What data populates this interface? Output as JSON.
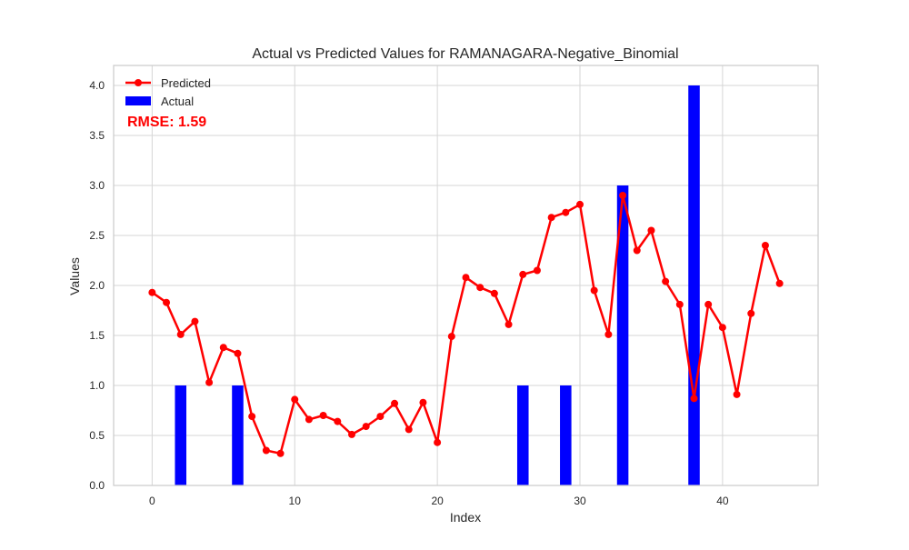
{
  "chart_data": {
    "type": "bar+line",
    "title": "Actual vs Predicted Values for RAMANAGARA-Negative_Binomial",
    "xlabel": "Index",
    "ylabel": "Values",
    "xlim": [
      -2.7,
      46.7
    ],
    "ylim": [
      0,
      4.2
    ],
    "xticks": [
      0,
      10,
      20,
      30,
      40
    ],
    "yticks": [
      0.0,
      0.5,
      1.0,
      1.5,
      2.0,
      2.5,
      3.0,
      3.5,
      4.0
    ],
    "ytick_labels": [
      "0.0",
      "0.5",
      "1.0",
      "1.5",
      "2.0",
      "2.5",
      "3.0",
      "3.5",
      "4.0"
    ],
    "grid": true,
    "legend_position": "top-left",
    "annotation": "RMSE: 1.59",
    "series": [
      {
        "name": "Predicted",
        "kind": "line",
        "marker": "circle",
        "color": "#ff0000",
        "x": [
          0,
          1,
          2,
          3,
          4,
          5,
          6,
          7,
          8,
          9,
          10,
          11,
          12,
          13,
          14,
          15,
          16,
          17,
          18,
          19,
          20,
          21,
          22,
          23,
          24,
          25,
          26,
          27,
          28,
          29,
          30,
          31,
          32,
          33,
          34,
          35,
          36,
          37,
          38,
          39,
          40,
          41,
          42,
          43,
          44
        ],
        "values": [
          1.93,
          1.83,
          1.51,
          1.64,
          1.03,
          1.38,
          1.32,
          0.69,
          0.35,
          0.32,
          0.86,
          0.66,
          0.7,
          0.64,
          0.51,
          0.59,
          0.69,
          0.82,
          0.56,
          0.83,
          0.43,
          1.49,
          2.08,
          1.98,
          1.92,
          1.61,
          2.11,
          2.15,
          2.68,
          2.73,
          2.81,
          1.95,
          1.51,
          2.9,
          2.35,
          2.55,
          2.04,
          1.81,
          0.87,
          1.81,
          1.58,
          0.91,
          1.72,
          2.4,
          2.02
        ]
      },
      {
        "name": "Actual",
        "kind": "bar",
        "color": "#0000ff",
        "x": [
          0,
          1,
          2,
          3,
          4,
          5,
          6,
          7,
          8,
          9,
          10,
          11,
          12,
          13,
          14,
          15,
          16,
          17,
          18,
          19,
          20,
          21,
          22,
          23,
          24,
          25,
          26,
          27,
          28,
          29,
          30,
          31,
          32,
          33,
          34,
          35,
          36,
          37,
          38,
          39,
          40,
          41,
          42,
          43,
          44
        ],
        "values": [
          0,
          0,
          1,
          0,
          0,
          0,
          1,
          0,
          0,
          0,
          0,
          0,
          0,
          0,
          0,
          0,
          0,
          0,
          0,
          0,
          0,
          0,
          0,
          0,
          0,
          0,
          1,
          0,
          0,
          1,
          0,
          0,
          0,
          3,
          0,
          0,
          0,
          0,
          4,
          0,
          0,
          0,
          0,
          0,
          0
        ]
      }
    ]
  }
}
